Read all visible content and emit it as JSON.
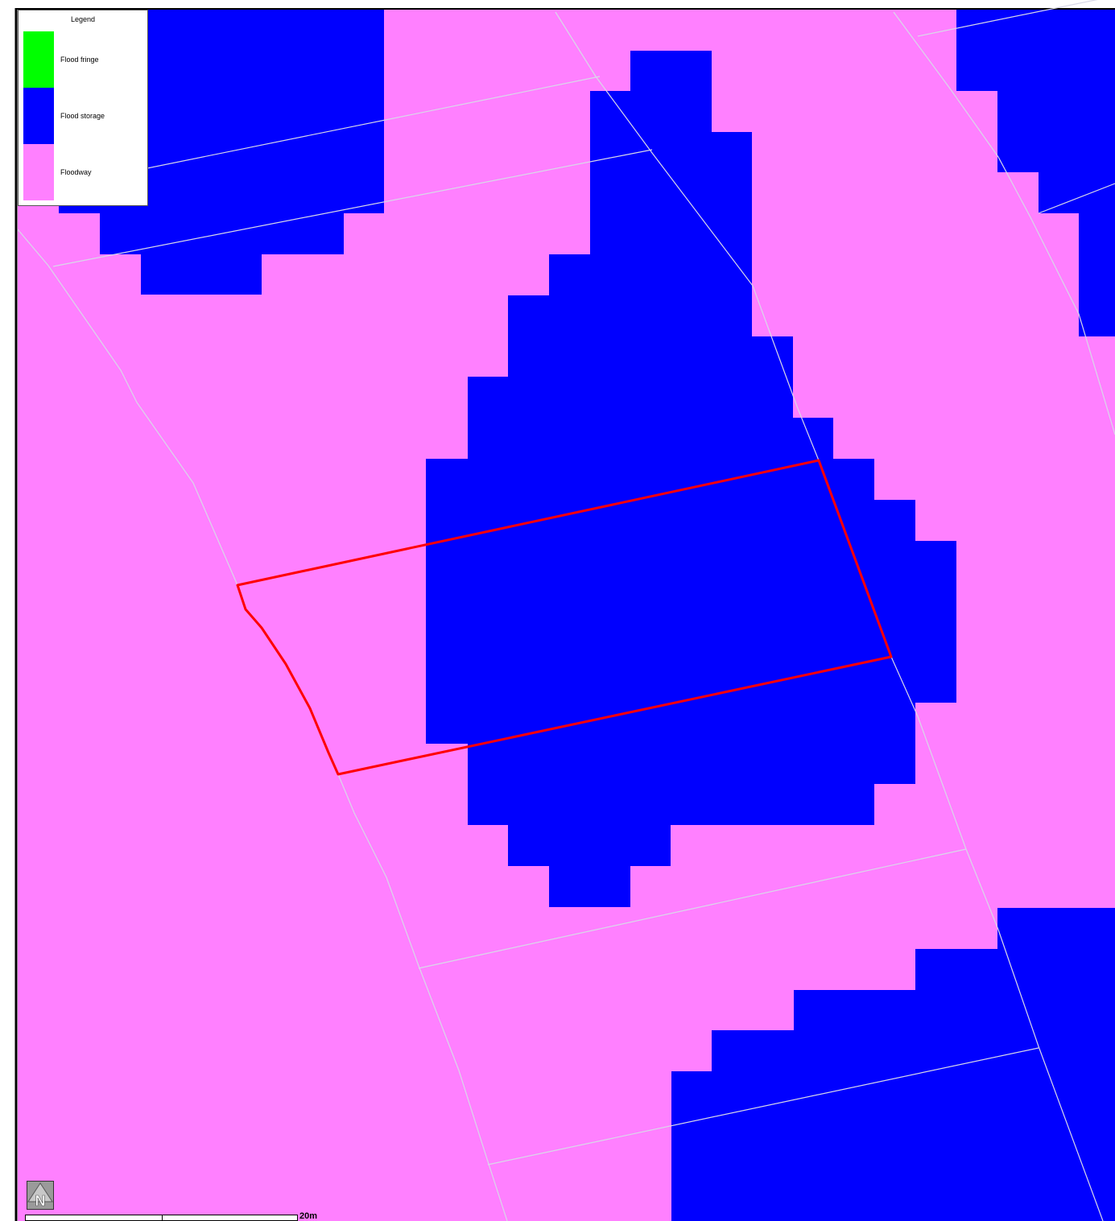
{
  "colors": {
    "flood_fringe": "#00ff00",
    "flood_storage": "#0000ff",
    "floodway": "#ff80ff",
    "parcel_lines": "#d8d8e8",
    "site_boundary": "#ff0000"
  },
  "legend": {
    "title": "Legend",
    "items": [
      {
        "label": "Flood fringe",
        "color": "#00ff00"
      },
      {
        "label": "Flood storage",
        "color": "#0000ff"
      },
      {
        "label": "Floodway",
        "color": "#ff80ff"
      }
    ]
  },
  "north_arrow": {
    "label": "N",
    "icon": "north-arrow-icon"
  },
  "scale_bar": {
    "label": "20m"
  }
}
